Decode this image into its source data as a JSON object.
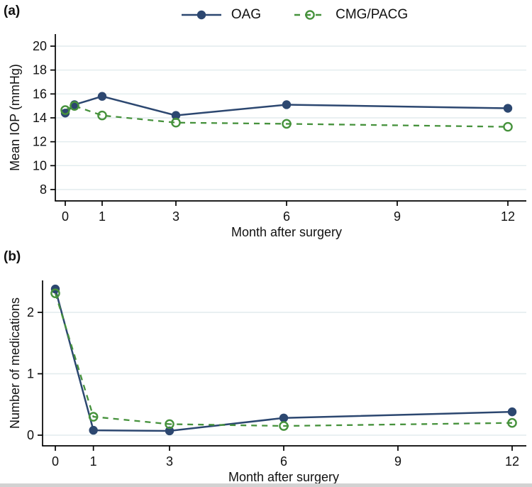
{
  "figure": {
    "panel_a_label": "(a)",
    "panel_b_label": "(b)"
  },
  "legend": {
    "items": [
      {
        "label": "OAG",
        "series": "oag"
      },
      {
        "label": "CMG/PACG",
        "series": "cmg"
      }
    ]
  },
  "colors": {
    "oag_navy": "#2c4770",
    "cmg_green": "#46923c",
    "grid": "#e2ecee",
    "axis": "#000000",
    "text": "#111111",
    "bottom_strip": "#d2d2d2"
  },
  "chart_data": [
    {
      "type": "line",
      "panel": "a",
      "title": "",
      "ylabel": "Mean IOP (mmHg)",
      "xlabel": "Month after surgery",
      "xticks": [
        0,
        1,
        3,
        6,
        9,
        12
      ],
      "yticks": [
        8,
        10,
        12,
        14,
        16,
        18,
        20
      ],
      "xlim": [
        0,
        12
      ],
      "ylim": [
        7.05,
        21.0
      ],
      "grid": "horizontal",
      "legend_position": "top-center",
      "series": [
        {
          "name": "OAG",
          "style": "solid",
          "marker": "filled",
          "x": [
            0,
            0.25,
            1,
            3,
            6,
            12
          ],
          "y": [
            14.4,
            15.1,
            15.8,
            14.2,
            15.1,
            14.8
          ]
        },
        {
          "name": "CMG/PACG",
          "style": "dashed",
          "marker": "open",
          "x": [
            0,
            0.25,
            1,
            3,
            6,
            12
          ],
          "y": [
            14.65,
            15.0,
            14.2,
            13.6,
            13.5,
            13.25
          ]
        }
      ]
    },
    {
      "type": "line",
      "panel": "b",
      "title": "",
      "ylabel": "Number of medications",
      "xlabel": "Month after surgery",
      "xticks": [
        0,
        1,
        3,
        6,
        9,
        12
      ],
      "yticks": [
        0,
        1,
        2
      ],
      "xlim": [
        0,
        12
      ],
      "ylim": [
        -0.17,
        2.52
      ],
      "grid": "horizontal",
      "legend_position": "shared-top",
      "series": [
        {
          "name": "OAG",
          "style": "solid",
          "marker": "filled",
          "x": [
            0,
            1,
            3,
            6,
            12
          ],
          "y": [
            2.38,
            0.08,
            0.07,
            0.28,
            0.38
          ]
        },
        {
          "name": "CMG/PACG",
          "style": "dashed",
          "marker": "open",
          "x": [
            0,
            1,
            3,
            6,
            12
          ],
          "y": [
            2.31,
            0.3,
            0.18,
            0.15,
            0.2
          ]
        }
      ]
    }
  ]
}
